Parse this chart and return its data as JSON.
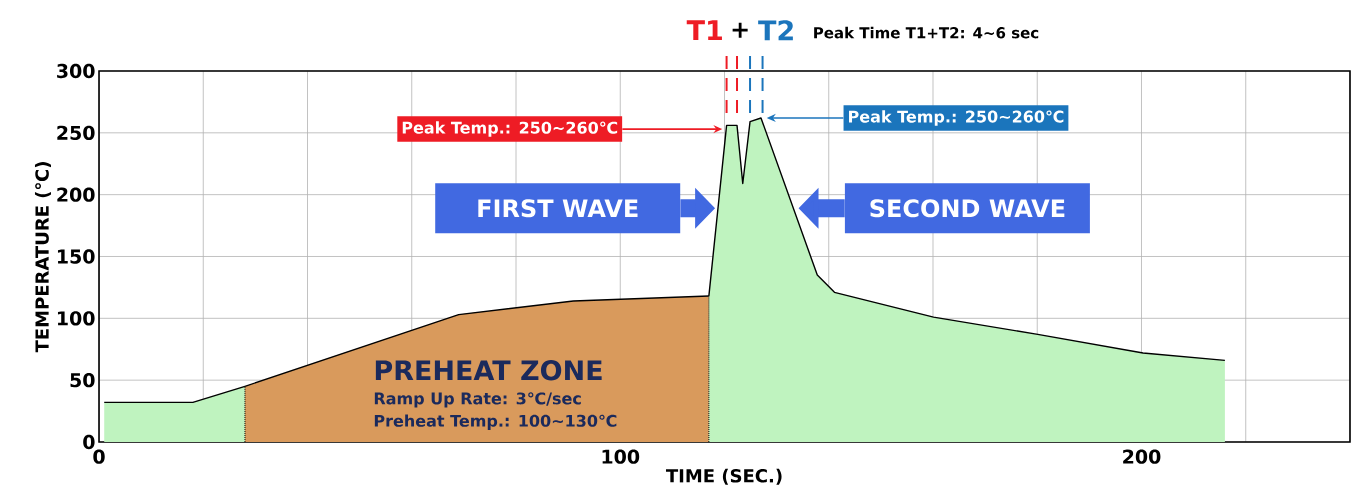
{
  "chart_data": {
    "type": "area",
    "xlabel": "TIME (SEC.)",
    "ylabel": "TEMPERATURE (℃)",
    "xlim": [
      0,
      240
    ],
    "ylim": [
      0,
      300
    ],
    "xticks": [
      0,
      {
        "value": 20,
        "label": null
      },
      {
        "value": 40,
        "label": null
      },
      {
        "value": 60,
        "label": null
      },
      {
        "value": 80,
        "label": null
      },
      100,
      {
        "value": 120,
        "label": null
      },
      {
        "value": 140,
        "label": null
      },
      {
        "value": 160,
        "label": null
      },
      {
        "value": 180,
        "label": null
      },
      200,
      {
        "value": 220,
        "label": null
      },
      {
        "value": 240,
        "label": null
      }
    ],
    "yticks": [
      0,
      50,
      100,
      150,
      200,
      250,
      300
    ],
    "grid": true,
    "series": [
      {
        "color": "#bff3bf",
        "x": [
          1,
          18,
          28
        ],
        "values": [
          32,
          32,
          45
        ]
      },
      {
        "color": "#d99a5c",
        "x": [
          28,
          69,
          91,
          117
        ],
        "values": [
          45,
          103,
          114,
          118
        ]
      },
      {
        "color": "#bff3bf",
        "x": [
          117,
          120.4,
          122.4,
          123.5,
          124.9,
          127,
          137.8,
          141.1,
          160.1,
          180.1,
          200.3,
          216
        ],
        "values": [
          118,
          256,
          256,
          209,
          259,
          262,
          135,
          121,
          101,
          87,
          72,
          66
        ]
      }
    ],
    "ref_lines": [
      {
        "axis": "x",
        "value": 120.4,
        "color": "#ee1c25",
        "line_style": "dashed"
      },
      {
        "axis": "x",
        "value": 122.4,
        "color": "#ee1c25",
        "line_style": "dashed"
      },
      {
        "axis": "x",
        "value": 124.9,
        "color": "#1b75bc",
        "line_style": "dashed"
      },
      {
        "axis": "x",
        "value": 127.3,
        "color": "#1b75bc",
        "line_style": "dashed"
      }
    ],
    "annotations": [
      "T1",
      "+",
      "T2",
      "Peak Time T1+T2: 4~6 sec",
      "Peak Temp.: 250~260℃",
      "Peak Temp.: 250~260℃",
      "FIRST WAVE",
      "SECOND WAVE",
      "PREHEAT ZONE",
      "Ramp Up Rate: 3℃/sec",
      "Preheat Temp.: 100~130℃"
    ]
  }
}
